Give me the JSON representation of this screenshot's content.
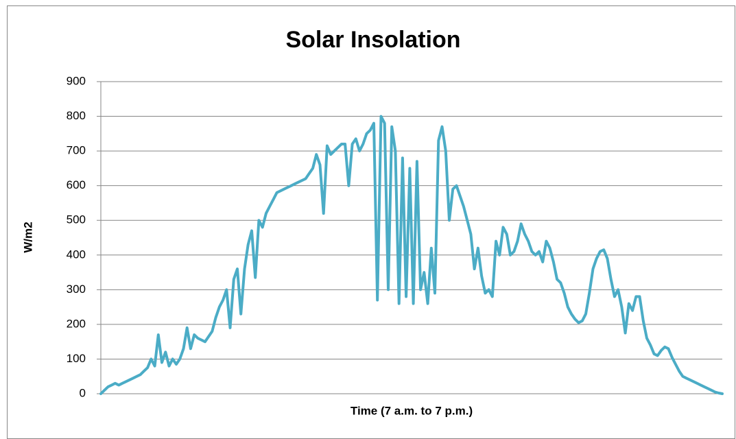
{
  "chart_data": {
    "type": "line",
    "title": "Solar Insolation",
    "x_label": "Time (7 a.m. to 7 p.m.)",
    "y_label": "W/m2",
    "ylim": [
      0,
      900
    ],
    "yticks": [
      0,
      100,
      200,
      300,
      400,
      500,
      600,
      700,
      800,
      900
    ],
    "grid": true,
    "series": [
      {
        "color": "#4bacc6",
        "values": [
          0,
          10,
          20,
          25,
          30,
          25,
          30,
          35,
          40,
          45,
          50,
          55,
          65,
          75,
          100,
          80,
          170,
          90,
          120,
          80,
          100,
          85,
          100,
          130,
          190,
          130,
          170,
          160,
          155,
          150,
          165,
          180,
          220,
          250,
          270,
          300,
          190,
          330,
          360,
          230,
          360,
          430,
          470,
          335,
          500,
          480,
          520,
          540,
          560,
          580,
          585,
          590,
          595,
          600,
          605,
          610,
          615,
          620,
          635,
          650,
          690,
          660,
          520,
          715,
          690,
          700,
          710,
          720,
          720,
          600,
          720,
          735,
          700,
          720,
          750,
          760,
          780,
          270,
          800,
          780,
          300,
          770,
          700,
          260,
          680,
          280,
          650,
          260,
          670,
          300,
          350,
          260,
          420,
          290,
          730,
          770,
          700,
          500,
          590,
          600,
          570,
          540,
          500,
          460,
          360,
          420,
          340,
          290,
          300,
          280,
          440,
          400,
          480,
          460,
          400,
          410,
          440,
          490,
          460,
          440,
          410,
          400,
          410,
          380,
          440,
          420,
          380,
          330,
          320,
          290,
          250,
          230,
          215,
          205,
          210,
          230,
          290,
          360,
          390,
          410,
          415,
          390,
          330,
          280,
          300,
          250,
          175,
          260,
          240,
          280,
          280,
          210,
          160,
          140,
          115,
          110,
          125,
          135,
          130,
          105,
          85,
          65,
          50,
          45,
          40,
          35,
          30,
          25,
          20,
          15,
          10,
          5,
          2,
          0
        ]
      }
    ]
  }
}
